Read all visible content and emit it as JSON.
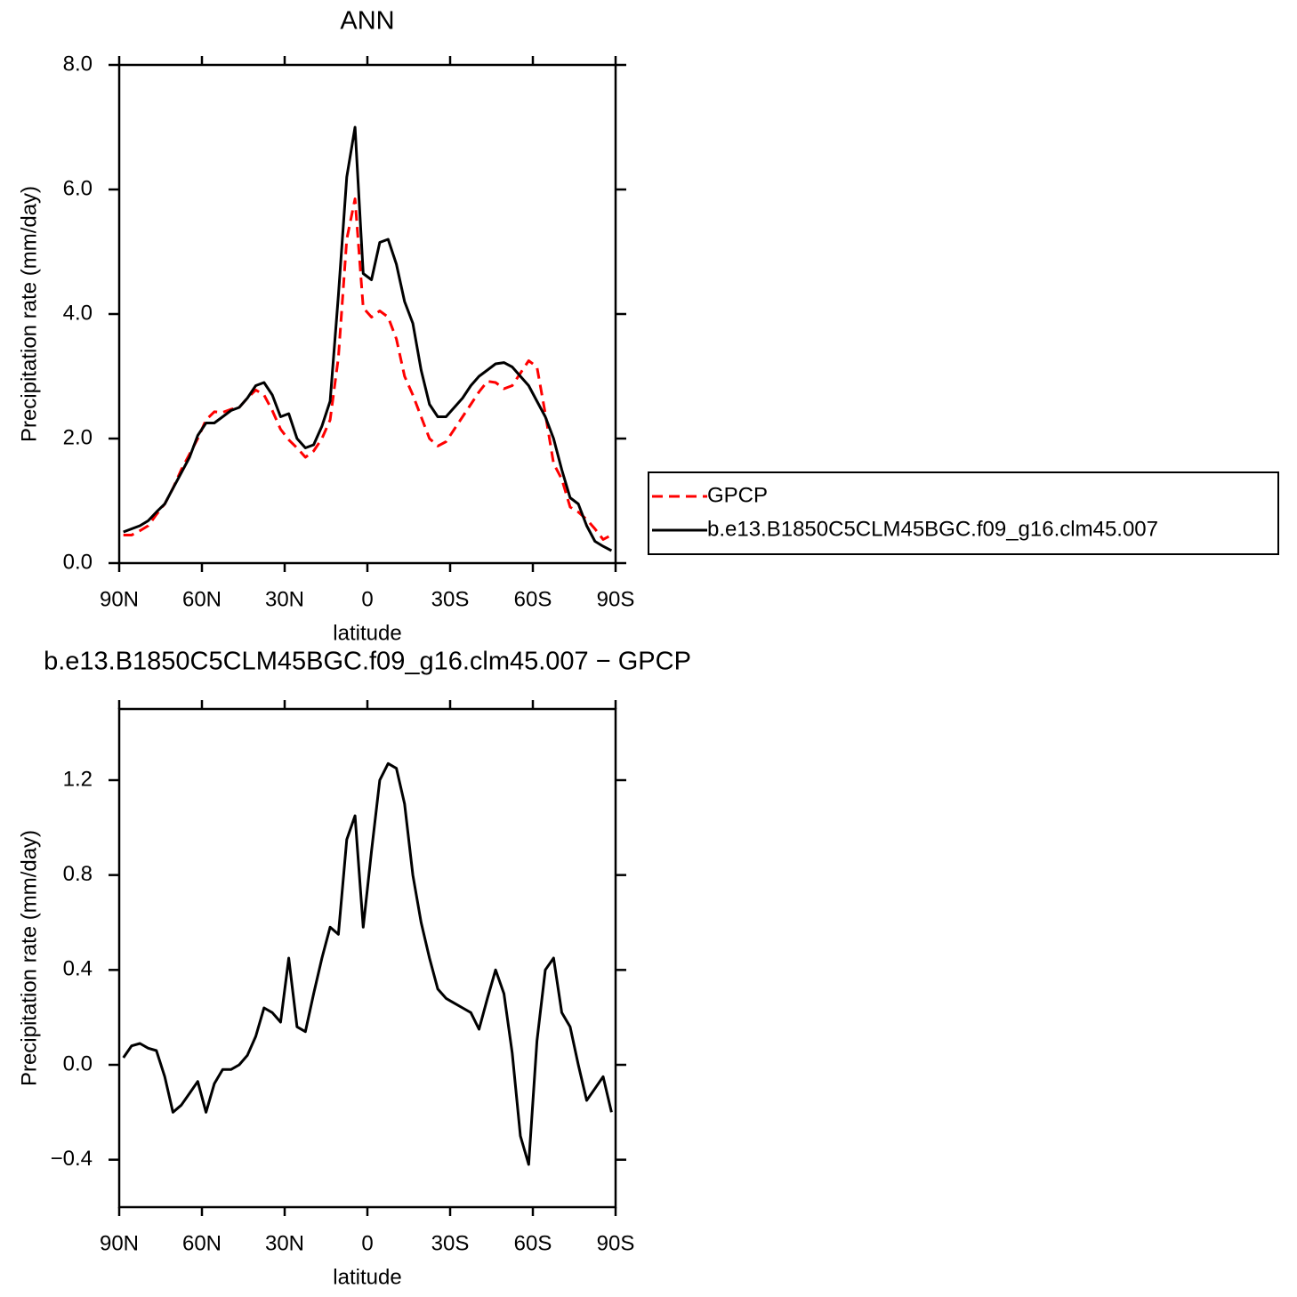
{
  "chart_data": [
    {
      "type": "line",
      "title": "ANN",
      "x": [
        88.5,
        85.5,
        82.5,
        79.5,
        76.5,
        73.5,
        70.5,
        67.5,
        64.5,
        61.5,
        58.5,
        55.5,
        52.5,
        49.5,
        46.5,
        43.5,
        40.5,
        37.5,
        34.5,
        31.5,
        28.5,
        25.5,
        22.5,
        19.5,
        16.5,
        13.5,
        10.5,
        7.5,
        4.5,
        1.5,
        -1.5,
        -4.5,
        -7.5,
        -10.5,
        -13.5,
        -16.5,
        -19.5,
        -22.5,
        -25.5,
        -28.5,
        -31.5,
        -34.5,
        -37.5,
        -40.5,
        -43.5,
        -46.5,
        -49.5,
        -52.5,
        -55.5,
        -58.5,
        -61.5,
        -64.5,
        -67.5,
        -70.5,
        -73.5,
        -76.5,
        -79.5,
        -82.5,
        -85.5,
        -88.5
      ],
      "xlim": [
        90,
        -90
      ],
      "xticks": [
        {
          "value": 90,
          "label": "90N"
        },
        {
          "value": 60,
          "label": "60N"
        },
        {
          "value": 30,
          "label": "30N"
        },
        0,
        {
          "value": -30,
          "label": "30S"
        },
        {
          "value": -60,
          "label": "60S"
        },
        {
          "value": -90,
          "label": "90S"
        }
      ],
      "ylim": [
        0,
        8
      ],
      "yticks": [
        {
          "value": 0,
          "label": "0.0"
        },
        {
          "value": 2,
          "label": "2.0"
        },
        {
          "value": 4,
          "label": "4.0"
        },
        {
          "value": 6,
          "label": "6.0"
        },
        {
          "value": 8,
          "label": "8.0"
        }
      ],
      "xlabel": "latitude",
      "ylabel": "Precipitation rate (mm/day)",
      "legend": "outside-right",
      "series": [
        {
          "name": "GPCP",
          "color": "#ff0000",
          "line_style": "dashed",
          "values": [
            0.45,
            0.45,
            0.52,
            0.6,
            0.78,
            0.95,
            1.2,
            1.5,
            1.75,
            2.0,
            2.3,
            2.43,
            2.42,
            2.47,
            2.5,
            2.65,
            2.78,
            2.7,
            2.45,
            2.15,
            1.98,
            1.85,
            1.7,
            1.8,
            2.0,
            2.3,
            3.3,
            5.2,
            5.85,
            4.1,
            3.95,
            4.05,
            3.95,
            3.6,
            3.0,
            2.7,
            2.35,
            2.0,
            1.88,
            1.95,
            2.15,
            2.35,
            2.55,
            2.75,
            2.92,
            2.9,
            2.8,
            2.85,
            3.05,
            3.25,
            3.15,
            2.4,
            1.6,
            1.35,
            0.9,
            0.82,
            0.7,
            0.55,
            0.38,
            0.45
          ]
        },
        {
          "name": "b.e13.B1850C5CLM45BGC.f09_g16.clm45.007",
          "color": "#000000",
          "line_style": "solid",
          "values": [
            0.5,
            0.55,
            0.6,
            0.68,
            0.82,
            0.95,
            1.2,
            1.45,
            1.7,
            2.05,
            2.25,
            2.25,
            2.35,
            2.45,
            2.5,
            2.65,
            2.85,
            2.9,
            2.7,
            2.35,
            2.4,
            2.0,
            1.85,
            1.9,
            2.2,
            2.6,
            4.3,
            6.2,
            7.0,
            4.65,
            4.55,
            5.15,
            5.2,
            4.8,
            4.2,
            3.85,
            3.1,
            2.55,
            2.35,
            2.35,
            2.5,
            2.65,
            2.85,
            3.0,
            3.1,
            3.2,
            3.22,
            3.15,
            3.0,
            2.85,
            2.6,
            2.35,
            2.0,
            1.5,
            1.05,
            0.95,
            0.6,
            0.35,
            0.27,
            0.2
          ]
        }
      ]
    },
    {
      "type": "line",
      "title": "b.e13.B1850C5CLM45BGC.f09_g16.clm45.007 − GPCP",
      "x": [
        88.5,
        85.5,
        82.5,
        79.5,
        76.5,
        73.5,
        70.5,
        67.5,
        64.5,
        61.5,
        58.5,
        55.5,
        52.5,
        49.5,
        46.5,
        43.5,
        40.5,
        37.5,
        34.5,
        31.5,
        28.5,
        25.5,
        22.5,
        19.5,
        16.5,
        13.5,
        10.5,
        7.5,
        4.5,
        1.5,
        -1.5,
        -4.5,
        -7.5,
        -10.5,
        -13.5,
        -16.5,
        -19.5,
        -22.5,
        -25.5,
        -28.5,
        -31.5,
        -34.5,
        -37.5,
        -40.5,
        -43.5,
        -46.5,
        -49.5,
        -52.5,
        -55.5,
        -58.5,
        -61.5,
        -64.5,
        -67.5,
        -70.5,
        -73.5,
        -76.5,
        -79.5,
        -82.5,
        -85.5,
        -88.5
      ],
      "xlim": [
        90,
        -90
      ],
      "xticks": [
        {
          "value": 90,
          "label": "90N"
        },
        {
          "value": 60,
          "label": "60N"
        },
        {
          "value": 30,
          "label": "30N"
        },
        0,
        {
          "value": -30,
          "label": "30S"
        },
        {
          "value": -60,
          "label": "60S"
        },
        {
          "value": -90,
          "label": "90S"
        }
      ],
      "ylim": [
        -0.6,
        1.5
      ],
      "yticks": [
        {
          "value": -0.4,
          "label": "−0.4"
        },
        {
          "value": 0,
          "label": "0.0"
        },
        0.4,
        0.8,
        1.2
      ],
      "xlabel": "latitude",
      "ylabel": "Precipitation rate (mm/day)",
      "color": "#000000",
      "values": [
        0.03,
        0.08,
        0.09,
        0.07,
        0.06,
        -0.05,
        -0.2,
        -0.17,
        -0.12,
        -0.07,
        -0.2,
        -0.08,
        -0.02,
        -0.02,
        0.0,
        0.04,
        0.12,
        0.24,
        0.22,
        0.18,
        0.45,
        0.16,
        0.14,
        0.3,
        0.45,
        0.58,
        0.55,
        0.95,
        1.05,
        0.58,
        0.9,
        1.2,
        1.27,
        1.25,
        1.1,
        0.8,
        0.6,
        0.45,
        0.32,
        0.28,
        0.26,
        0.24,
        0.22,
        0.15,
        0.28,
        0.4,
        0.3,
        0.05,
        -0.3,
        -0.42,
        0.1,
        0.4,
        0.45,
        0.22,
        0.16,
        0.0,
        -0.15,
        -0.1,
        -0.05,
        -0.2
      ]
    }
  ]
}
